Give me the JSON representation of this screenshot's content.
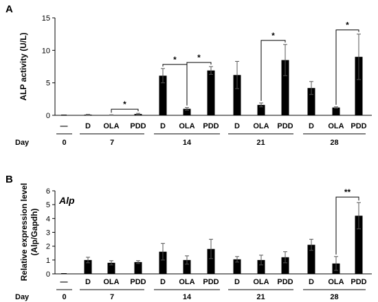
{
  "chart_data": [
    {
      "type": "bar",
      "panel_label": "A",
      "ylabel": "ALP activity (U/L)",
      "ylim": [
        0,
        15
      ],
      "yticks": [
        0,
        5,
        10,
        15
      ],
      "x_row_label": "Day",
      "groups": [
        {
          "day": "0",
          "categories": [
            "—"
          ]
        },
        {
          "day": "7",
          "categories": [
            "D",
            "OLA",
            "PDD"
          ]
        },
        {
          "day": "14",
          "categories": [
            "D",
            "OLA",
            "PDD"
          ]
        },
        {
          "day": "21",
          "categories": [
            "D",
            "OLA",
            "PDD"
          ]
        },
        {
          "day": "28",
          "categories": [
            "D",
            "OLA",
            "PDD"
          ]
        }
      ],
      "values": [
        0,
        0.1,
        0.05,
        0.2,
        6.1,
        1.0,
        6.9,
        6.2,
        1.6,
        8.5,
        4.2,
        1.2,
        9.0
      ],
      "errors": [
        0,
        0.05,
        0.03,
        0.1,
        1.1,
        0.2,
        0.6,
        2.1,
        0.3,
        2.4,
        1.0,
        0.1,
        3.5
      ],
      "significance": [
        {
          "from": 2,
          "to": 3,
          "label": "*"
        },
        {
          "from": 4,
          "to": 5,
          "label": "*"
        },
        {
          "from": 5,
          "to": 6,
          "label": "*"
        },
        {
          "from": 8,
          "to": 9,
          "label": "*"
        },
        {
          "from": 11,
          "to": 12,
          "label": "*"
        }
      ],
      "grid": false
    },
    {
      "type": "bar",
      "panel_label": "B",
      "gene_label": "Alp",
      "ylabel_line1": "Relative expression level",
      "ylabel_line2": "(Alp/Gapdh)",
      "ylim": [
        0,
        6
      ],
      "yticks": [
        0,
        1,
        2,
        3,
        4,
        5,
        6
      ],
      "x_row_label": "Day",
      "groups": [
        {
          "day": "0",
          "categories": [
            "—"
          ]
        },
        {
          "day": "7",
          "categories": [
            "D",
            "OLA",
            "PDD"
          ]
        },
        {
          "day": "14",
          "categories": [
            "D",
            "OLA",
            "PDD"
          ]
        },
        {
          "day": "21",
          "categories": [
            "D",
            "OLA",
            "PDD"
          ]
        },
        {
          "day": "28",
          "categories": [
            "D",
            "OLA",
            "PDD"
          ]
        }
      ],
      "values": [
        0,
        1.0,
        0.8,
        0.85,
        1.6,
        1.0,
        1.8,
        1.05,
        1.0,
        1.2,
        2.1,
        0.75,
        4.2
      ],
      "errors": [
        0,
        0.2,
        0.15,
        0.1,
        0.6,
        0.3,
        0.7,
        0.2,
        0.35,
        0.4,
        0.4,
        0.5,
        0.95
      ],
      "significance": [
        {
          "from": 11,
          "to": 12,
          "label": "**"
        }
      ],
      "grid": false
    }
  ]
}
